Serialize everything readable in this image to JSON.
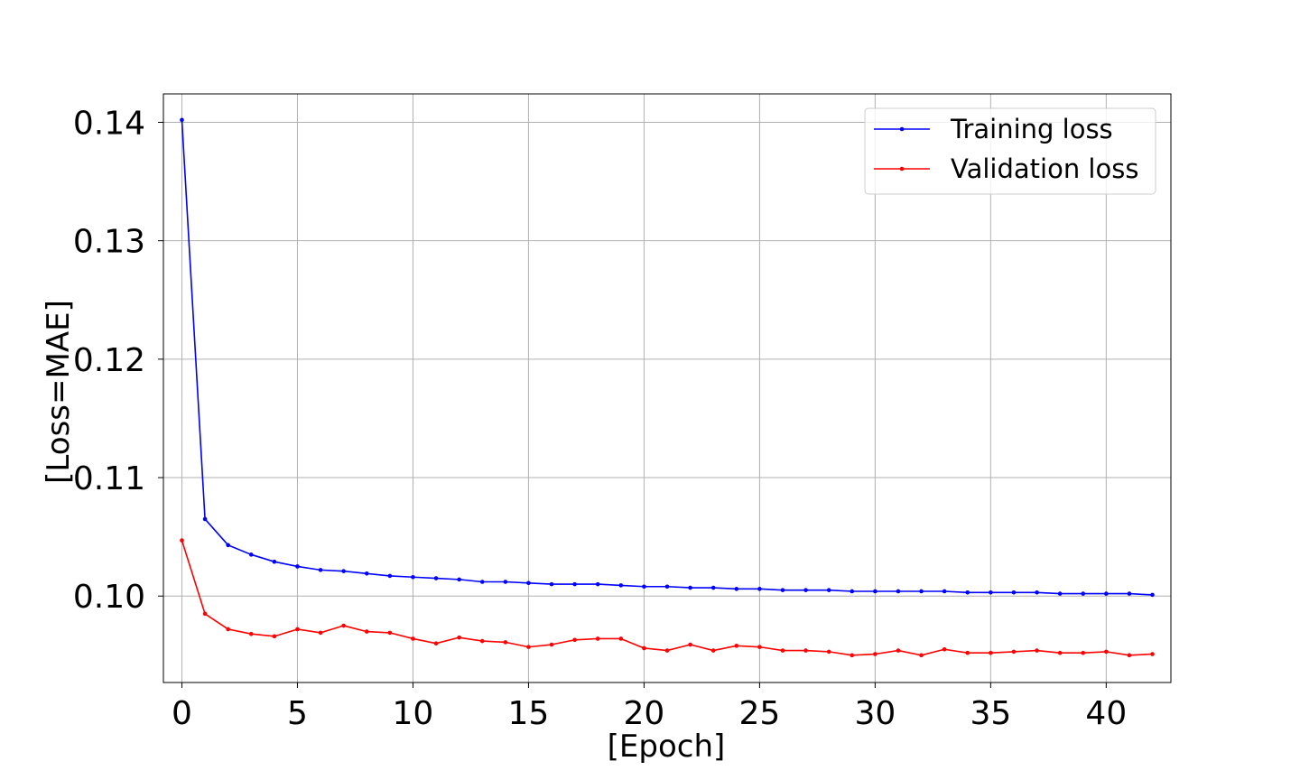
{
  "chart_data": {
    "type": "line",
    "title": "",
    "xlabel": "[Epoch]",
    "ylabel": "[Loss=MAE]",
    "xlim": [
      -0.8,
      42.8
    ],
    "ylim": [
      0.0927,
      0.1424
    ],
    "xticks": [
      0,
      5,
      10,
      15,
      20,
      25,
      30,
      35,
      40
    ],
    "yticks": [
      0.1,
      0.11,
      0.12,
      0.13,
      0.14
    ],
    "ytick_labels": [
      "0.10",
      "0.11",
      "0.12",
      "0.13",
      "0.14"
    ],
    "grid": true,
    "legend_position": "top-right",
    "x": [
      0,
      1,
      2,
      3,
      4,
      5,
      6,
      7,
      8,
      9,
      10,
      11,
      12,
      13,
      14,
      15,
      16,
      17,
      18,
      19,
      20,
      21,
      22,
      23,
      24,
      25,
      26,
      27,
      28,
      29,
      30,
      31,
      32,
      33,
      34,
      35,
      36,
      37,
      38,
      39,
      40,
      41,
      42
    ],
    "series": [
      {
        "name": "Training loss",
        "color": "#0000ff",
        "values": [
          0.1402,
          0.1065,
          0.1043,
          0.1035,
          0.1029,
          0.1025,
          0.1022,
          0.1021,
          0.1019,
          0.1017,
          0.1016,
          0.1015,
          0.1014,
          0.1012,
          0.1012,
          0.1011,
          0.101,
          0.101,
          0.101,
          0.1009,
          0.1008,
          0.1008,
          0.1007,
          0.1007,
          0.1006,
          0.1006,
          0.1005,
          0.1005,
          0.1005,
          0.1004,
          0.1004,
          0.1004,
          0.1004,
          0.1004,
          0.1003,
          0.1003,
          0.1003,
          0.1003,
          0.1002,
          0.1002,
          0.1002,
          0.1002,
          0.1001
        ]
      },
      {
        "name": "Validation loss",
        "color": "#ff0000",
        "values": [
          0.1047,
          0.0985,
          0.0972,
          0.0968,
          0.0966,
          0.0972,
          0.0969,
          0.0975,
          0.097,
          0.0969,
          0.0964,
          0.096,
          0.0965,
          0.0962,
          0.0961,
          0.0957,
          0.0959,
          0.0963,
          0.0964,
          0.0964,
          0.0956,
          0.0954,
          0.0959,
          0.0954,
          0.0958,
          0.0957,
          0.0954,
          0.0954,
          0.0953,
          0.095,
          0.0951,
          0.0954,
          0.095,
          0.0955,
          0.0952,
          0.0952,
          0.0953,
          0.0954,
          0.0952,
          0.0952,
          0.0953,
          0.095,
          0.0951
        ]
      }
    ]
  }
}
